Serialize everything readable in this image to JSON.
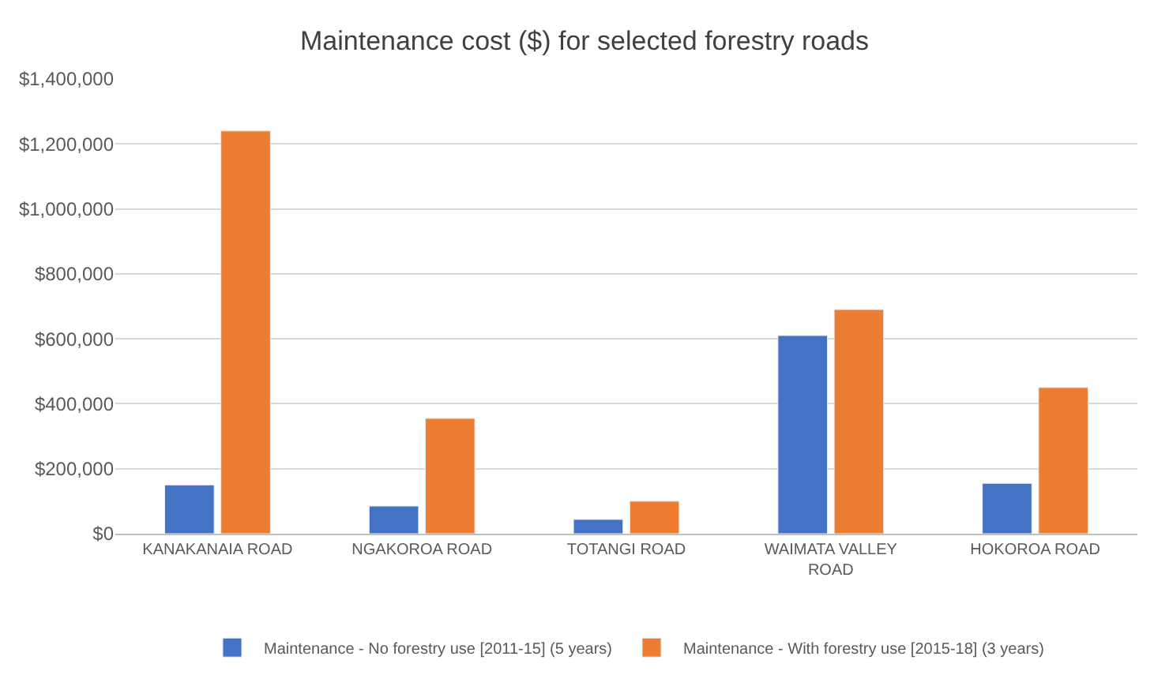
{
  "chart_data": {
    "type": "bar",
    "title": "Maintenance cost ($) for selected forestry roads",
    "categories": [
      "KANAKANAIA ROAD",
      "NGAKOROA ROAD",
      "TOTANGI ROAD",
      "WAIMATA VALLEY ROAD",
      "HOKOROA ROAD"
    ],
    "series": [
      {
        "name": "Maintenance - No forestry use [2011-15] (5 years)",
        "color": "#4472c4",
        "values": [
          150000,
          85000,
          44000,
          610000,
          155000
        ]
      },
      {
        "name": "Maintenance - With forestry use [2015-18] (3 years)",
        "color": "#ed7d31",
        "values": [
          1240000,
          355000,
          100000,
          690000,
          450000
        ]
      }
    ],
    "ylim": [
      0,
      1400000
    ],
    "yticks": [
      {
        "value": 0,
        "label": "$0"
      },
      {
        "value": 200000,
        "label": "$200,000"
      },
      {
        "value": 400000,
        "label": "$400,000"
      },
      {
        "value": 600000,
        "label": "$600,000"
      },
      {
        "value": 800000,
        "label": "$800,000"
      },
      {
        "value": 1000000,
        "label": "$1,000,000"
      },
      {
        "value": 1200000,
        "label": "$1,200,000"
      },
      {
        "value": 1400000,
        "label": "$1,400,000"
      }
    ],
    "grid": "y",
    "legend": "bottom"
  }
}
